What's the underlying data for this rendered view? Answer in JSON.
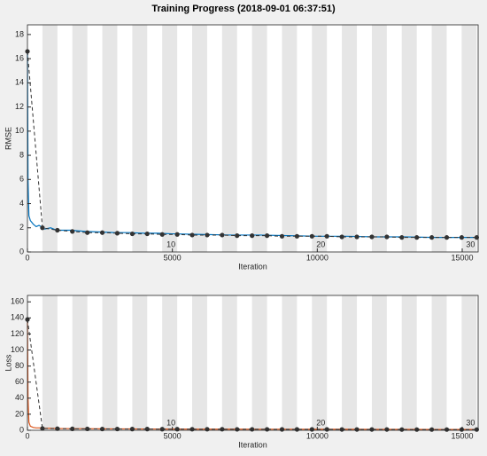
{
  "title": "Training Progress (2018-09-01 06:37:51)",
  "chart_data": [
    {
      "type": "line",
      "y_label": "RMSE",
      "x_label": "Iteration",
      "xlim": [
        0,
        15550
      ],
      "ylim": [
        0,
        18.8
      ],
      "xticks": [
        0,
        5000,
        10000,
        15000
      ],
      "yticks": [
        0,
        2,
        4,
        6,
        8,
        10,
        12,
        14,
        16,
        18
      ],
      "epoch_ticks": [
        {
          "value": 5167,
          "label": "10"
        },
        {
          "value": 10333,
          "label": "20"
        },
        {
          "value": 15500,
          "label": "30"
        }
      ],
      "series": [
        {
          "color": "#0072bd",
          "dash": false,
          "markers": false,
          "x": [
            0,
            20,
            50,
            100,
            200,
            300,
            400,
            600,
            800,
            1000,
            1500,
            2000,
            2500,
            3000,
            3500,
            4000,
            4500,
            5000,
            6000,
            7000,
            8000,
            9000,
            10000,
            11000,
            12000,
            13000,
            14000,
            15000,
            15500
          ],
          "values": [
            16.5,
            6,
            3,
            2.6,
            2.3,
            2.1,
            2.2,
            1.9,
            2.0,
            1.8,
            1.8,
            1.7,
            1.65,
            1.6,
            1.6,
            1.55,
            1.55,
            1.5,
            1.45,
            1.4,
            1.4,
            1.35,
            1.3,
            1.3,
            1.25,
            1.25,
            1.2,
            1.2,
            1.2
          ]
        },
        {
          "color": "#333333",
          "dash": true,
          "markers": true,
          "x": [
            0,
            517,
            1033,
            1550,
            2067,
            2583,
            3100,
            3617,
            4133,
            4650,
            5167,
            5683,
            6200,
            6717,
            7233,
            7750,
            8267,
            8783,
            9300,
            9817,
            10333,
            10850,
            11367,
            11883,
            12400,
            12917,
            13433,
            13950,
            14467,
            14983,
            15500
          ],
          "values": [
            16.6,
            2.0,
            1.8,
            1.7,
            1.6,
            1.6,
            1.55,
            1.5,
            1.5,
            1.45,
            1.45,
            1.4,
            1.4,
            1.4,
            1.35,
            1.35,
            1.35,
            1.3,
            1.3,
            1.3,
            1.3,
            1.25,
            1.25,
            1.25,
            1.25,
            1.2,
            1.2,
            1.2,
            1.2,
            1.2,
            1.2
          ]
        }
      ]
    },
    {
      "type": "line",
      "y_label": "Loss",
      "x_label": "Iteration",
      "xlim": [
        0,
        15550
      ],
      "ylim": [
        0,
        168
      ],
      "xticks": [
        0,
        5000,
        10000,
        15000
      ],
      "yticks": [
        0,
        20,
        40,
        60,
        80,
        100,
        120,
        140,
        160
      ],
      "epoch_ticks": [
        {
          "value": 5167,
          "label": "10"
        },
        {
          "value": 10333,
          "label": "20"
        },
        {
          "value": 15500,
          "label": "30"
        }
      ],
      "series": [
        {
          "color": "#d95319",
          "dash": false,
          "markers": false,
          "x": [
            0,
            20,
            50,
            100,
            200,
            300,
            400,
            600,
            800,
            1000,
            1500,
            2000,
            2500,
            3000,
            3500,
            4000,
            4500,
            5000,
            6000,
            7000,
            8000,
            9000,
            10000,
            11000,
            12000,
            13000,
            14000,
            15000,
            15500
          ],
          "values": [
            138,
            40,
            10,
            5,
            3.5,
            3,
            3,
            2.5,
            2.5,
            2.2,
            2,
            2,
            1.8,
            1.7,
            1.7,
            1.6,
            1.6,
            1.5,
            1.4,
            1.4,
            1.3,
            1.3,
            1.2,
            1.2,
            1.1,
            1.1,
            1.0,
            1.0,
            1.0
          ]
        },
        {
          "color": "#333333",
          "dash": true,
          "markers": true,
          "x": [
            0,
            517,
            1033,
            1550,
            2067,
            2583,
            3100,
            3617,
            4133,
            4650,
            5167,
            5683,
            6200,
            6717,
            7233,
            7750,
            8267,
            8783,
            9300,
            9817,
            10333,
            10850,
            11367,
            11883,
            12400,
            12917,
            13433,
            13950,
            14467,
            14983,
            15500
          ],
          "values": [
            138,
            2.3,
            2.0,
            1.8,
            1.7,
            1.6,
            1.6,
            1.5,
            1.5,
            1.4,
            1.4,
            1.3,
            1.3,
            1.3,
            1.2,
            1.2,
            1.2,
            1.1,
            1.1,
            1.1,
            1.1,
            1.0,
            1.0,
            1.0,
            1.0,
            0.9,
            0.9,
            0.9,
            0.9,
            0.9,
            0.9
          ]
        }
      ]
    }
  ]
}
